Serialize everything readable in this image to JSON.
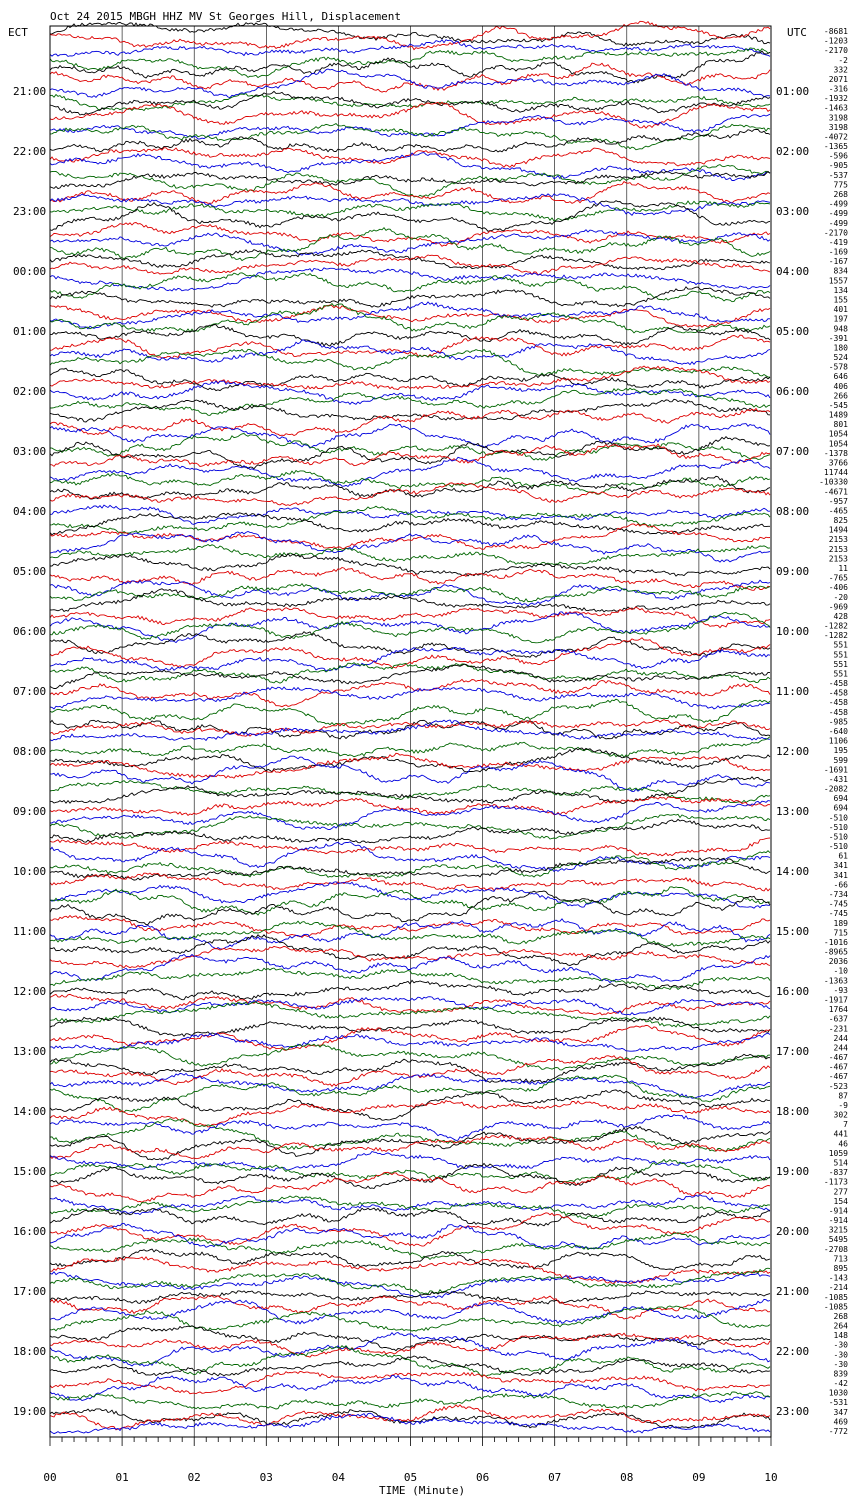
{
  "header": {
    "title": "Oct 24 2015 MBGH HHZ MV St Georges Hill, Displacement",
    "left_timezone": "ECT",
    "right_timezone": "UTC"
  },
  "chart_data": {
    "type": "line",
    "title": "Oct 24 2015 MBGH HHZ MV St Georges Hill, Displacement",
    "xlabel": "TIME (Minute)",
    "ylabel": "",
    "x_tick_labels": [
      "00",
      "01",
      "02",
      "03",
      "04",
      "05",
      "06",
      "07",
      "08",
      "09",
      "10"
    ],
    "xlim": [
      0,
      10
    ],
    "left_hour_labels": [
      "21:00",
      "22:00",
      "23:00",
      "00:00",
      "01:00",
      "02:00",
      "03:00",
      "04:00",
      "05:00",
      "06:00",
      "07:00",
      "08:00",
      "09:00",
      "10:00",
      "11:00",
      "12:00",
      "13:00",
      "14:00",
      "15:00",
      "16:00",
      "17:00",
      "18:00",
      "19:00"
    ],
    "right_hour_labels": [
      "01:00",
      "02:00",
      "03:00",
      "04:00",
      "05:00",
      "06:00",
      "07:00",
      "08:00",
      "09:00",
      "10:00",
      "11:00",
      "12:00",
      "13:00",
      "14:00",
      "15:00",
      "16:00",
      "17:00",
      "18:00",
      "19:00",
      "20:00",
      "21:00",
      "22:00",
      "23:00"
    ],
    "trace_colors": [
      "#000000",
      "#dd0000",
      "#0000dd",
      "#006600"
    ],
    "grid": true,
    "traces_per_hour": 6,
    "trace_offsets": [
      "-8681",
      "-1203",
      "-2170",
      "-2",
      "332",
      "2071",
      "-316",
      "-1932",
      "-1463",
      "3198",
      "3198",
      "-4072",
      "-1365",
      "-596",
      "-905",
      "-537",
      "775",
      "268",
      "-499",
      "-499",
      "-499",
      "-2170",
      "-419",
      "-169",
      "-167",
      "834",
      "1557",
      "134",
      "155",
      "401",
      "197",
      "948",
      "-391",
      "180",
      "524",
      "-578",
      "646",
      "406",
      "266",
      "-545",
      "1489",
      "801",
      "1054",
      "1054",
      "-1378",
      "3766",
      "11744",
      "-10330",
      "-4671",
      "-957",
      "-465",
      "825",
      "1494",
      "2153",
      "2153",
      "2153",
      "11",
      "-765",
      "-406",
      "-20",
      "-969",
      "428",
      "-1282",
      "-1282",
      "551",
      "551",
      "551",
      "551",
      "-458",
      "-458",
      "-458",
      "-458",
      "-985",
      "-640",
      "1106",
      "195",
      "599",
      "-1691",
      "-431",
      "-2082",
      "694",
      "694",
      "-510",
      "-510",
      "-510",
      "-510",
      "61",
      "341",
      "341",
      "-66",
      "-734",
      "-745",
      "-745",
      "189",
      "715",
      "-1016",
      "-8965",
      "2036",
      "-10",
      "-1363",
      "-93",
      "-1917",
      "1764",
      "-637",
      "-231",
      "244",
      "244",
      "-467",
      "-467",
      "-467",
      "-523",
      "87",
      "-9",
      "302",
      "7",
      "441",
      "46",
      "1059",
      "514",
      "-837",
      "-1173",
      "277",
      "154",
      "-914",
      "-914",
      "3215",
      "5495",
      "-2708",
      "713",
      "895",
      "-143",
      "-214",
      "-1085",
      "-1085",
      "268",
      "264",
      "148",
      "-30",
      "-30",
      "-30",
      "839",
      "-42",
      "1030",
      "-531",
      "347",
      "469",
      "-772"
    ]
  }
}
